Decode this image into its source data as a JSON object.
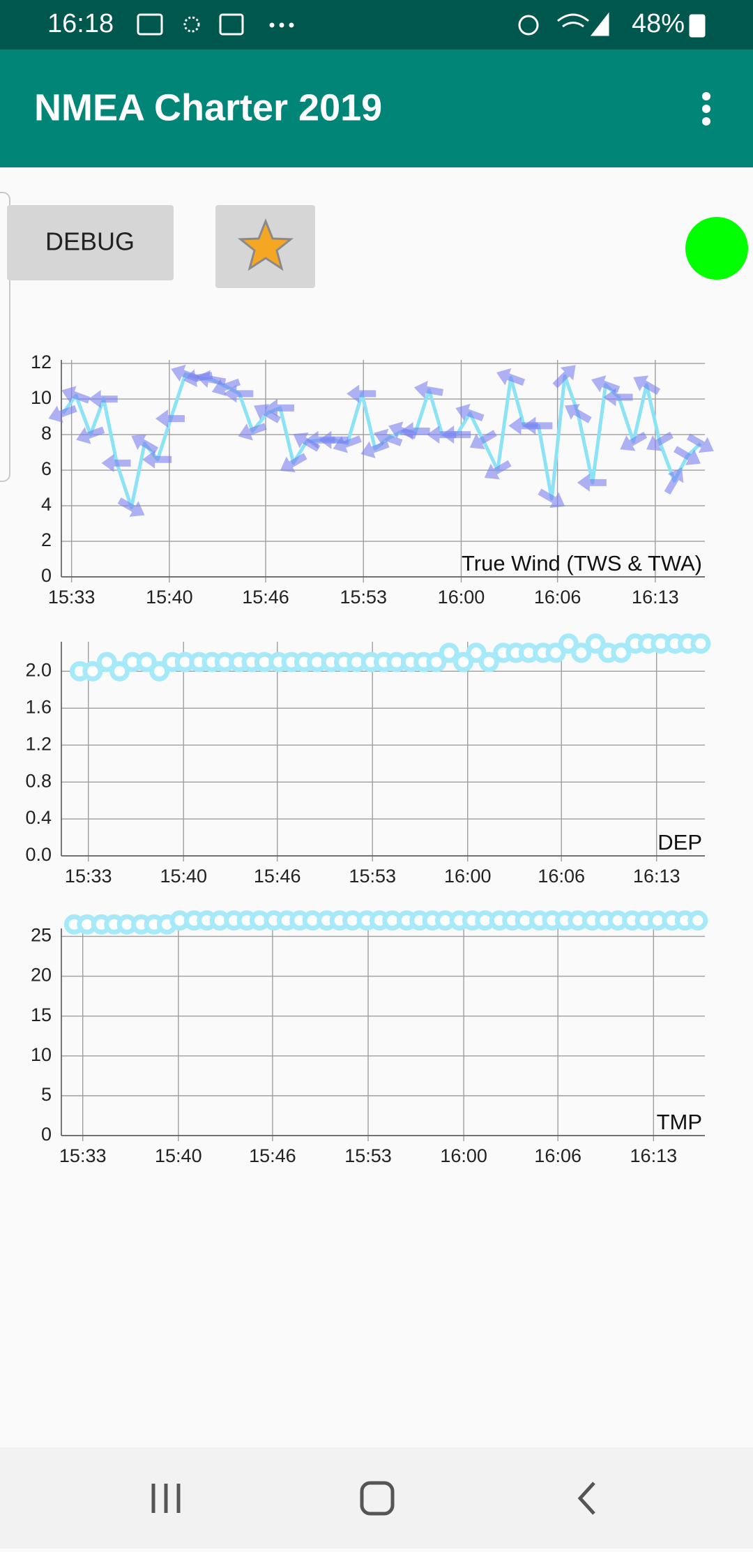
{
  "status_bar": {
    "time": "16:18",
    "battery": "48%"
  },
  "app_bar": {
    "title": "NMEA Charter 2019"
  },
  "buttons": {
    "debug": "DEBUG"
  },
  "chart_data": [
    {
      "type": "line",
      "title": "True Wind (TWS & TWA)",
      "color": "#8be3f5",
      "arrow_color": "#7b7ff0",
      "grid": true,
      "x": [
        932.4,
        933.3,
        934.3,
        935.2,
        936.1,
        937.1,
        938.0,
        938.9,
        939.8,
        940.8,
        941.7,
        942.6,
        943.6,
        944.5,
        945.4,
        946.4,
        947.3,
        948.2,
        949.1,
        950.1,
        951.0,
        951.9,
        952.9,
        953.8,
        954.7,
        955.7,
        956.6,
        957.5,
        958.4,
        959.4,
        960.3,
        961.2,
        962.2,
        963.1,
        964.0,
        965.0,
        965.9,
        966.8,
        967.7,
        968.7,
        969.6,
        970.5,
        971.5,
        972.4,
        973.3,
        974.3,
        975.2,
        976.1
      ],
      "values": [
        9.2,
        10.2,
        8.0,
        10.0,
        6.4,
        3.9,
        7.5,
        6.6,
        8.9,
        11.4,
        11.2,
        11.1,
        10.7,
        10.3,
        8.2,
        9.2,
        9.5,
        6.4,
        7.6,
        7.7,
        7.7,
        7.5,
        10.3,
        7.2,
        7.8,
        8.2,
        8.2,
        10.5,
        8.0,
        8.0,
        9.2,
        7.7,
        6.0,
        11.2,
        8.5,
        8.5,
        4.4,
        11.3,
        9.2,
        5.3,
        10.8,
        10.1,
        7.6,
        10.8,
        7.6,
        5.4,
        6.8,
        7.5
      ],
      "angles": [
        200,
        160,
        200,
        180,
        180,
        330,
        150,
        180,
        180,
        160,
        190,
        170,
        200,
        180,
        200,
        150,
        180,
        210,
        150,
        180,
        180,
        200,
        180,
        200,
        160,
        160,
        180,
        170,
        180,
        180,
        160,
        210,
        210,
        160,
        180,
        180,
        330,
        45,
        150,
        180,
        160,
        180,
        210,
        150,
        210,
        60,
        330,
        330
      ],
      "xlim": [
        932.3,
        976.4
      ],
      "xticks": [
        {
          "value": 933.0,
          "label": "15:33"
        },
        {
          "value": 939.7,
          "label": "15:40"
        },
        {
          "value": 946.3,
          "label": "15:46"
        },
        {
          "value": 953.0,
          "label": "15:53"
        },
        {
          "value": 959.7,
          "label": "16:00"
        },
        {
          "value": 966.3,
          "label": "16:06"
        },
        {
          "value": 973.0,
          "label": "16:13"
        }
      ],
      "ylim": [
        0,
        12.2
      ],
      "yticks": [
        0,
        2,
        4,
        6,
        8,
        10,
        12
      ]
    },
    {
      "type": "scatter",
      "title": "DEP",
      "color": "#a6e9f8",
      "grid": true,
      "x": [
        932.4,
        933.3,
        934.3,
        935.2,
        936.1,
        937.1,
        938.0,
        938.9,
        939.8,
        940.8,
        941.7,
        942.6,
        943.6,
        944.5,
        945.4,
        946.4,
        947.3,
        948.2,
        949.1,
        950.1,
        951.0,
        951.9,
        952.9,
        953.8,
        954.7,
        955.7,
        956.6,
        957.5,
        958.4,
        959.4,
        960.3,
        961.2,
        962.2,
        963.1,
        964.0,
        965.0,
        965.9,
        966.8,
        967.7,
        968.7,
        969.6,
        970.5,
        971.5,
        972.4,
        973.3,
        974.3,
        975.2,
        976.1
      ],
      "values": [
        2.0,
        2.0,
        2.1,
        2.0,
        2.1,
        2.1,
        2.0,
        2.1,
        2.1,
        2.1,
        2.1,
        2.1,
        2.1,
        2.1,
        2.1,
        2.1,
        2.1,
        2.1,
        2.1,
        2.1,
        2.1,
        2.1,
        2.1,
        2.1,
        2.1,
        2.1,
        2.1,
        2.1,
        2.2,
        2.1,
        2.2,
        2.1,
        2.2,
        2.2,
        2.2,
        2.2,
        2.2,
        2.3,
        2.2,
        2.3,
        2.2,
        2.2,
        2.3,
        2.3,
        2.3,
        2.3,
        2.3,
        2.3
      ],
      "xlim": [
        931.1,
        976.4
      ],
      "xticks": [
        {
          "value": 933.0,
          "label": "15:33"
        },
        {
          "value": 939.7,
          "label": "15:40"
        },
        {
          "value": 946.3,
          "label": "15:46"
        },
        {
          "value": 953.0,
          "label": "15:53"
        },
        {
          "value": 959.7,
          "label": "16:00"
        },
        {
          "value": 966.3,
          "label": "16:06"
        },
        {
          "value": 973.0,
          "label": "16:13"
        }
      ],
      "ylim": [
        0,
        2.32
      ],
      "yticks": [
        {
          "value": 0,
          "label": "0.0"
        },
        0.4,
        0.8,
        1.2,
        1.6,
        {
          "value": 2,
          "label": "2.0"
        }
      ]
    },
    {
      "type": "scatter",
      "title": "TMP",
      "color": "#a6e9f8",
      "grid": true,
      "x": [
        932.4,
        933.3,
        934.3,
        935.2,
        936.1,
        937.1,
        938.0,
        938.9,
        939.8,
        940.8,
        941.7,
        942.6,
        943.6,
        944.5,
        945.4,
        946.4,
        947.3,
        948.2,
        949.1,
        950.1,
        951.0,
        951.9,
        952.9,
        953.8,
        954.7,
        955.7,
        956.6,
        957.5,
        958.4,
        959.4,
        960.3,
        961.2,
        962.2,
        963.1,
        964.0,
        965.0,
        965.9,
        966.8,
        967.7,
        968.7,
        969.6,
        970.5,
        971.5,
        972.4,
        973.3,
        974.3,
        975.2,
        976.1
      ],
      "values": [
        26.5,
        26.5,
        26.5,
        26.5,
        26.5,
        26.5,
        26.5,
        26.5,
        27.0,
        27.0,
        27.0,
        27.0,
        27.0,
        27.0,
        27.0,
        27.0,
        27.0,
        27.0,
        27.0,
        27.0,
        27.0,
        27.0,
        27.0,
        27.0,
        27.0,
        27.0,
        27.0,
        27.0,
        27.0,
        27.0,
        27.0,
        27.0,
        27.0,
        27.0,
        27.0,
        27.0,
        27.0,
        27.0,
        27.0,
        27.0,
        27.0,
        27.0,
        27.0,
        27.0,
        27.0,
        27.0,
        27.0,
        27.0
      ],
      "xlim": [
        931.5,
        976.6
      ],
      "xticks": [
        {
          "value": 933.0,
          "label": "15:33"
        },
        {
          "value": 939.7,
          "label": "15:40"
        },
        {
          "value": 946.3,
          "label": "15:46"
        },
        {
          "value": 953.0,
          "label": "15:53"
        },
        {
          "value": 959.7,
          "label": "16:00"
        },
        {
          "value": 966.3,
          "label": "16:06"
        },
        {
          "value": 973.0,
          "label": "16:13"
        }
      ],
      "ylim": [
        0,
        26
      ],
      "yticks": [
        0,
        5,
        10,
        15,
        20,
        25
      ]
    }
  ]
}
